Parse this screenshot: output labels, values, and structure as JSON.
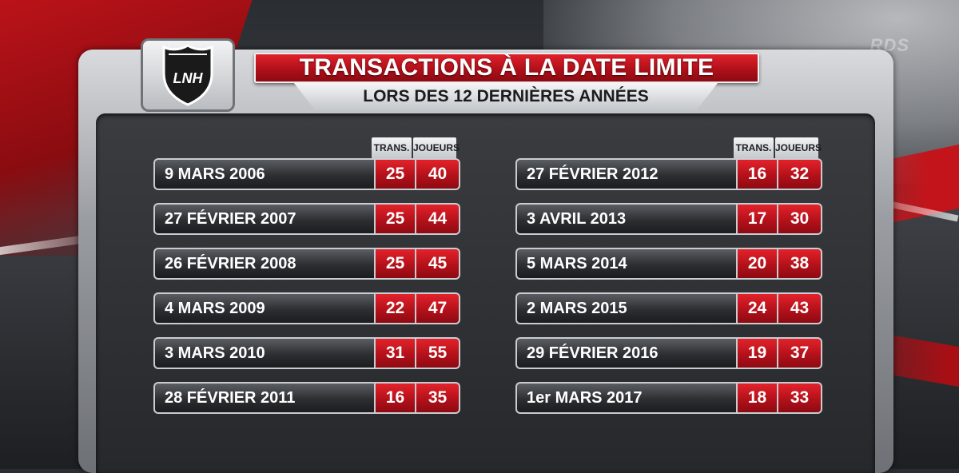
{
  "brand": {
    "watermark": "RDS",
    "logo_text": "LNH"
  },
  "title": "TRANSACTIONS À LA DATE LIMITE",
  "subtitle": "LORS DES 12 DERNIÈRES ANNÉES",
  "headers": {
    "trans": "TRANS.",
    "joueurs": "JOUEURS"
  },
  "colors": {
    "accent_red": "#c4141b",
    "panel_dark": "#26282b",
    "frame_silver": "#c9ccd0"
  },
  "left": [
    {
      "date": "9 MARS 2006",
      "trans": "25",
      "joueurs": "40"
    },
    {
      "date": "27 FÉVRIER 2007",
      "trans": "25",
      "joueurs": "44"
    },
    {
      "date": "26 FÉVRIER 2008",
      "trans": "25",
      "joueurs": "45"
    },
    {
      "date": "4 MARS 2009",
      "trans": "22",
      "joueurs": "47"
    },
    {
      "date": "3 MARS 2010",
      "trans": "31",
      "joueurs": "55"
    },
    {
      "date": "28 FÉVRIER 2011",
      "trans": "16",
      "joueurs": "35"
    }
  ],
  "right": [
    {
      "date": "27 FÉVRIER 2012",
      "trans": "16",
      "joueurs": "32"
    },
    {
      "date": "3 AVRIL 2013",
      "trans": "17",
      "joueurs": "30"
    },
    {
      "date": "5 MARS 2014",
      "trans": "20",
      "joueurs": "38"
    },
    {
      "date": "2 MARS 2015",
      "trans": "24",
      "joueurs": "43"
    },
    {
      "date": "29 FÉVRIER 2016",
      "trans": "19",
      "joueurs": "37"
    },
    {
      "date": "1er MARS 2017",
      "trans": "18",
      "joueurs": "33"
    }
  ]
}
